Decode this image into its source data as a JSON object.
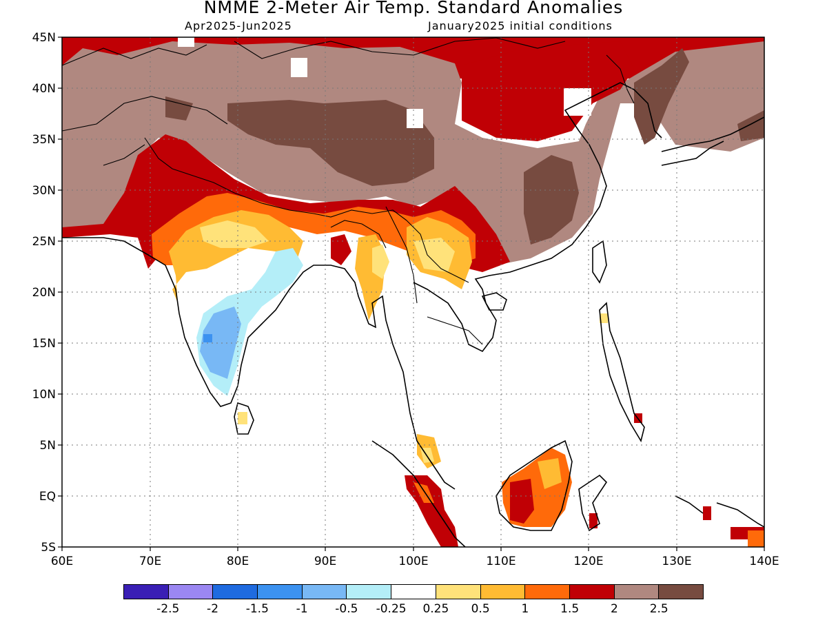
{
  "title": "NMME 2-Meter Air Temp. Standard Anomalies",
  "subtitle_left": "Apr2025-Jun2025",
  "subtitle_right": "January2025 initial conditions",
  "lat_ticks": [
    "45N",
    "40N",
    "35N",
    "30N",
    "25N",
    "20N",
    "15N",
    "10N",
    "5N",
    "EQ",
    "5S"
  ],
  "lon_ticks": [
    "60E",
    "70E",
    "80E",
    "90E",
    "100E",
    "110E",
    "120E",
    "130E",
    "140E"
  ],
  "legend": {
    "colors": [
      "#3a1fb5",
      "#9b87f2",
      "#1f6be0",
      "#3c92f0",
      "#78b8f5",
      "#b4eef8",
      "#ffffff",
      "#ffe27a",
      "#ffbb33",
      "#ff6a0a",
      "#c00005",
      "#b08880",
      "#774b40"
    ],
    "labels": [
      "-2.5",
      "-2",
      "-1.5",
      "-1",
      "-0.5",
      "-0.25",
      "0.25",
      "0.5",
      "1",
      "1.5",
      "2",
      "2.5"
    ]
  }
}
